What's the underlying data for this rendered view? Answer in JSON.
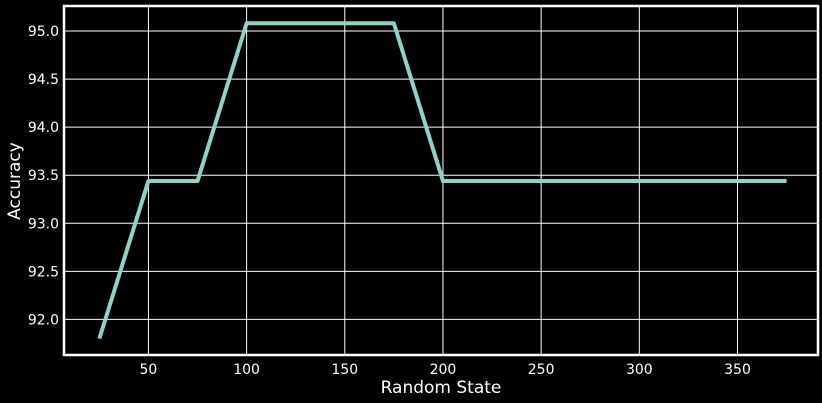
{
  "chart_data": {
    "type": "line",
    "title": "",
    "xlabel": "Random State",
    "ylabel": "Accuracy",
    "xlim": [
      7,
      391
    ],
    "ylim": [
      91.63,
      95.26
    ],
    "x_ticks": [
      50,
      100,
      150,
      200,
      250,
      300,
      350
    ],
    "y_ticks": [
      92.0,
      92.5,
      93.0,
      93.5,
      94.0,
      94.5,
      95.0
    ],
    "x_tick_labels": [
      "50",
      "100",
      "150",
      "200",
      "250",
      "300",
      "350"
    ],
    "y_tick_labels": [
      "92.0",
      "92.5",
      "93.0",
      "93.5",
      "94.0",
      "94.5",
      "95.0"
    ],
    "grid": true,
    "series": [
      {
        "color": "#8dd3c7",
        "x": [
          25,
          50,
          75,
          100,
          125,
          150,
          175,
          200,
          225,
          250,
          275,
          300,
          325,
          350,
          375
        ],
        "y": [
          91.8,
          93.44,
          93.44,
          95.08,
          95.08,
          95.08,
          95.08,
          93.44,
          93.44,
          93.44,
          93.44,
          93.44,
          93.44,
          93.44,
          93.44
        ]
      }
    ]
  }
}
